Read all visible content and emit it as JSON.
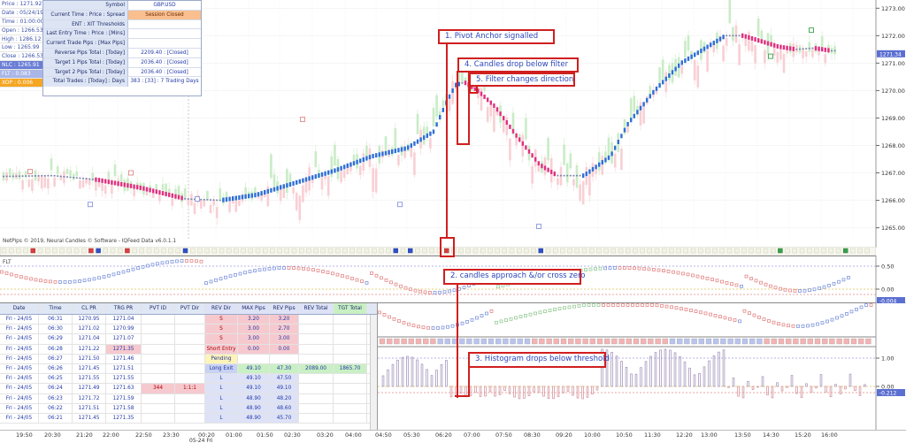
{
  "info_left": [
    {
      "label": "Price : 1271.92",
      "style": "plain"
    },
    {
      "label": "Date : 05/24/19",
      "style": "plain"
    },
    {
      "label": "Time : 01:00:00",
      "style": "plain"
    },
    {
      "label": "Open : 1266.53",
      "style": "plain"
    },
    {
      "label": "High : 1286.12",
      "style": "plain"
    },
    {
      "label": "Low : 1265.99",
      "style": "plain"
    },
    {
      "label": "Close : 1266.53",
      "style": "plain"
    },
    {
      "label": "NLC : 1265.91",
      "style": "nlc"
    },
    {
      "label": "FLT : 0.083",
      "style": "flt"
    },
    {
      "label": "XOP : 0.006",
      "style": "xop"
    }
  ],
  "info_table": [
    {
      "key": "Symbol",
      "value": "GBP.USD",
      "closed": false
    },
    {
      "key": "Current Time : Price : Spread",
      "value": "Session Closed",
      "closed": true
    },
    {
      "key": "ENT : XIT Thresholds",
      "value": "",
      "closed": false
    },
    {
      "key": "Last Entry Time : Price : [Mins]",
      "value": "",
      "closed": false
    },
    {
      "key": "Current Trade Pips : [Max Pips]",
      "value": "",
      "closed": false
    },
    {
      "key": "Reverse Pips Total : [Today]",
      "value": "2209.40 : [Closed]",
      "closed": false
    },
    {
      "key": "Target 1 Pips Total : [Today]",
      "value": "2036.40 : [Closed]",
      "closed": false
    },
    {
      "key": "Target 2 Pips Total : [Today]",
      "value": "2036.40 : [Closed]",
      "closed": false
    },
    {
      "key": "Total Trades : [Today] : Days",
      "value": "383 : [33] : 7 Trading Days",
      "closed": false
    }
  ],
  "watermark": "NetPips © 2019, Neural Candles © Software - IQFeed Data v6.0.1.1",
  "flt_label": "FLT",
  "price_axis": {
    "ticks": [
      "1273.00",
      "1272.00",
      "1271.00",
      "1270.00",
      "1269.00",
      "1268.00",
      "1267.00",
      "1266.00",
      "1265.00"
    ],
    "current_tag": "1271.34",
    "range": [
      1264.6,
      1273.3
    ]
  },
  "flt_axis": {
    "ticks": [
      "0.50",
      "0.00"
    ],
    "current_tag": "-0.004"
  },
  "hist_axis": {
    "ticks": [
      "1.00",
      "0.00"
    ],
    "current_tag": "-0.212"
  },
  "time_axis": {
    "ticks": [
      "19:50",
      "20:30",
      "21:20",
      "22:00",
      "22:50",
      "23:30",
      "00:20",
      "01:00",
      "01:50",
      "02:30",
      "03:20",
      "04:00",
      "04:50",
      "05:30",
      "06:20",
      "07:00",
      "07:50",
      "08:30",
      "09:20",
      "10:00",
      "10:50",
      "11:30",
      "12:20",
      "13:00",
      "13:50",
      "14:30",
      "15:20",
      "16:00"
    ],
    "date_label": "05-24 Fri"
  },
  "trade_table": {
    "headers": [
      "Date",
      "Time",
      "CL PR",
      "TRG PR",
      "PVT ID",
      "PVT Dir",
      "REV Dir",
      "MAX Pips",
      "REV Pips",
      "REV Total",
      "TGT Total",
      ""
    ],
    "rows": [
      [
        "Fri - 24/05",
        "06:31",
        "1270.95",
        "1271.04",
        "",
        "",
        "S",
        "3.20",
        "3.20",
        "",
        "",
        ""
      ],
      [
        "Fri - 24/05",
        "06:30",
        "1271.02",
        "1270.99",
        "",
        "",
        "S",
        "3.00",
        "2.70",
        "",
        "",
        ""
      ],
      [
        "Fri - 24/05",
        "06:29",
        "1271.04",
        "1271.07",
        "",
        "",
        "S",
        "3.00",
        "3.00",
        "",
        "",
        ""
      ],
      [
        "Fri - 24/05",
        "06:28",
        "1271.22",
        "1271.35",
        "",
        "",
        "Short Entry",
        "0.00",
        "0.00",
        "",
        "",
        ""
      ],
      [
        "Fri - 24/05",
        "06:27",
        "1271.50",
        "1271.46",
        "",
        "",
        "Pending",
        "",
        "",
        "",
        "",
        ""
      ],
      [
        "Fri - 24/05",
        "06:26",
        "1271.45",
        "1271.51",
        "",
        "",
        "Long Exit",
        "49.10",
        "47.30",
        "2089.00",
        "1865.70",
        ""
      ],
      [
        "Fri - 24/05",
        "06:25",
        "1271.55",
        "1271.55",
        "",
        "",
        "L",
        "49.10",
        "47.50",
        "",
        "",
        ""
      ],
      [
        "Fri - 24/05",
        "06:24",
        "1271.49",
        "1271.63",
        "344",
        "1:1:1",
        "L",
        "49.10",
        "49.10",
        "",
        "",
        ""
      ],
      [
        "Fri - 24/05",
        "06:23",
        "1271.72",
        "1271.59",
        "",
        "",
        "L",
        "48.90",
        "48.20",
        "",
        "",
        ""
      ],
      [
        "Fri - 24/05",
        "06:22",
        "1271.51",
        "1271.58",
        "",
        "",
        "L",
        "48.90",
        "48.60",
        "",
        "",
        ""
      ],
      [
        "Fri - 24/05",
        "06:21",
        "1271.45",
        "1271.35",
        "",
        "",
        "L",
        "48.90",
        "45.70",
        "",
        "",
        ""
      ]
    ]
  },
  "annotations": [
    {
      "id": "1",
      "text": "1.   Pivot Anchor signalled"
    },
    {
      "id": "4",
      "text": "4.   Candles drop below filter"
    },
    {
      "id": "5",
      "text": "5.   Filter changes direction"
    },
    {
      "id": "2",
      "text": "2.   candles approach &/or cross zero"
    },
    {
      "id": "3",
      "text": "3.   Histogram drops below threshold"
    }
  ],
  "colors": {
    "bull_candle": "#c9ecc6",
    "bear_candle": "#f8cfd4",
    "filter_up": "#2f6fd6",
    "filter_down": "#e0307f",
    "annotation": "#d01f1f",
    "annotation_text": "#2d46b9"
  }
}
